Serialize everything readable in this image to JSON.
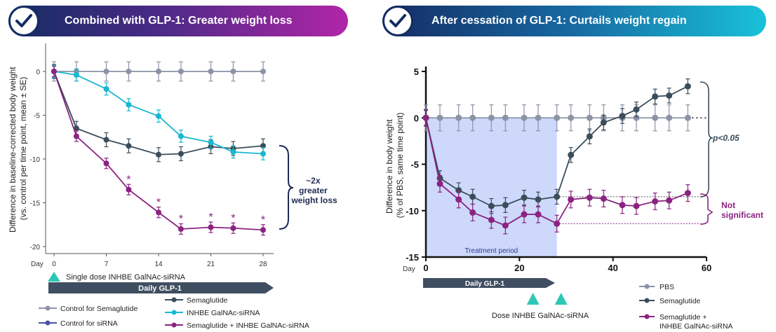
{
  "left_panel": {
    "banner_title": "Combined with GLP-1: Greater weight loss",
    "dose_label": "Single dose INHBE GalNAc-siRNA",
    "glp1_arrow_label": "Daily GLP-1",
    "bracket_lines": [
      "~2x",
      "greater",
      "weight loss"
    ],
    "legend": [
      {
        "label": "Control for Semaglutide",
        "color": "#8c93a6"
      },
      {
        "label": "Semaglutide",
        "color": "#3b4d5a"
      },
      {
        "label": "Control for siRNA",
        "color": "#4a52a3"
      },
      {
        "label": "INHBE GalNAc-siRNA",
        "color": "#18b8d0"
      },
      {
        "label": "Semaglutide + INHBE GalNAc-siRNA",
        "color": "#8b2382"
      }
    ]
  },
  "right_panel": {
    "banner_title": "After cessation of GLP-1: Curtails weight regain",
    "treatment_label": "Treatment period",
    "glp1_arrow_label": "Daily GLP-1",
    "dose_label": "Dose INHBE GalNAc-siRNA",
    "pvalue_label": "p<0.05",
    "ns_lines": [
      "Not",
      "significant"
    ],
    "legend": [
      {
        "label": "PBS",
        "color": "#8c93a6"
      },
      {
        "label": "Semaglutide",
        "color": "#3b4d5a"
      },
      {
        "label": "Semaglutide +",
        "label2": "INHBE GalNAc-siRNA",
        "color": "#8b2382"
      }
    ]
  },
  "chart_data": [
    {
      "type": "line",
      "ylabel": "Difference in baseline-corrected body weight (vs. control per time point, mean ± SE)",
      "xlabel": "Day",
      "x_ticks": [
        0,
        7,
        14,
        21,
        28
      ],
      "y_ticks": [
        0,
        -5,
        -10,
        -15,
        -20
      ],
      "ylim": [
        -20.5,
        1.5
      ],
      "xlim": [
        -1,
        29
      ],
      "series": [
        {
          "name": "Control for Semaglutide",
          "color": "#8c93a6",
          "x": [
            0,
            3,
            7,
            10,
            14,
            17,
            21,
            24,
            28
          ],
          "values": [
            0,
            0,
            0,
            0,
            0,
            0,
            0,
            0,
            0
          ],
          "err": 1.1
        },
        {
          "name": "Semaglutide",
          "color": "#3b4d5a",
          "x": [
            0,
            3,
            7,
            10,
            14,
            17,
            21,
            24,
            28
          ],
          "values": [
            0,
            -6.5,
            -7.8,
            -8.5,
            -9.5,
            -9.4,
            -8.6,
            -8.8,
            -8.5
          ],
          "err": 0.8
        },
        {
          "name": "INHBE GalNAc-siRNA",
          "color": "#18b8d0",
          "x": [
            0,
            3,
            7,
            10,
            14,
            17,
            21,
            24,
            28
          ],
          "values": [
            0,
            -0.4,
            -2.0,
            -3.8,
            -5.1,
            -7.4,
            -8.1,
            -9.2,
            -9.4
          ],
          "err": 0.7
        },
        {
          "name": "Semaglutide + INHBE GalNAc-siRNA",
          "color": "#8b2382",
          "x": [
            0,
            3,
            7,
            10,
            14,
            17,
            21,
            24,
            28
          ],
          "values": [
            0,
            -7.4,
            -10.5,
            -13.5,
            -16.1,
            -18.0,
            -17.8,
            -17.9,
            -18.1
          ],
          "err": 0.6
        }
      ],
      "significance_marks": {
        "symbol": "*",
        "x": [
          10,
          14,
          17,
          21,
          24,
          28
        ]
      }
    },
    {
      "type": "line",
      "ylabel": "Difference in body weight (% of PBS, same time point)",
      "xlabel": "Day",
      "x_ticks": [
        0,
        20,
        40,
        60
      ],
      "y_ticks": [
        5,
        0,
        -5,
        -10,
        -15
      ],
      "ylim": [
        -15,
        5
      ],
      "xlim": [
        0,
        60
      ],
      "treatment_period": [
        0,
        28
      ],
      "dose_days": [
        22,
        28
      ],
      "series": [
        {
          "name": "PBS",
          "color": "#8c93a6",
          "x": [
            0,
            3,
            7,
            10,
            14,
            17,
            21,
            24,
            28,
            31,
            35,
            38,
            42,
            45,
            49,
            52,
            56
          ],
          "values": [
            0,
            0,
            0,
            0,
            0,
            0,
            0,
            0,
            0,
            0,
            0,
            0,
            0,
            0,
            0,
            0,
            0
          ],
          "err": 1.4
        },
        {
          "name": "Semaglutide",
          "color": "#3b4d5a",
          "x": [
            0,
            3,
            7,
            10,
            14,
            17,
            21,
            24,
            28,
            31,
            35,
            38,
            42,
            45,
            49,
            52,
            56
          ],
          "values": [
            0,
            -6.5,
            -7.8,
            -8.5,
            -9.5,
            -9.4,
            -8.6,
            -8.8,
            -8.5,
            -4.0,
            -2.0,
            -0.5,
            0.2,
            0.9,
            2.3,
            2.4,
            3.4
          ],
          "err": 0.8
        },
        {
          "name": "Semaglutide + INHBE GalNAc-siRNA",
          "color": "#8b2382",
          "x": [
            0,
            3,
            7,
            10,
            14,
            17,
            21,
            24,
            28,
            31,
            35,
            38,
            42,
            45,
            49,
            52,
            56
          ],
          "values": [
            0,
            -7.1,
            -8.8,
            -10.2,
            -11.0,
            -11.6,
            -10.4,
            -10.4,
            -11.4,
            -8.8,
            -8.6,
            -8.7,
            -9.4,
            -9.5,
            -9.0,
            -8.9,
            -8.1
          ],
          "err": 0.9
        }
      ]
    }
  ]
}
